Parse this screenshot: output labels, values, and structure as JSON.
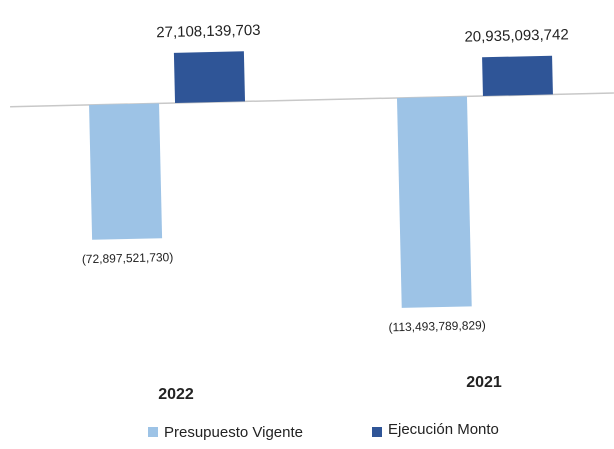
{
  "chart_data": {
    "type": "bar",
    "categories": [
      "2022",
      "2021"
    ],
    "series": [
      {
        "name": "Presupuesto Vigente",
        "color": "#9dc3e6",
        "values": [
          -72897521730,
          -113493789829
        ],
        "value_labels": [
          "(72,897,521,730)",
          "(113,493,789,829)"
        ]
      },
      {
        "name": "Ejecución Monto",
        "color": "#2f5597",
        "values": [
          27108139703,
          20935093742
        ],
        "value_labels": [
          "27,108,139,703",
          "20,935,093,742"
        ]
      }
    ],
    "legend": "bottom"
  }
}
